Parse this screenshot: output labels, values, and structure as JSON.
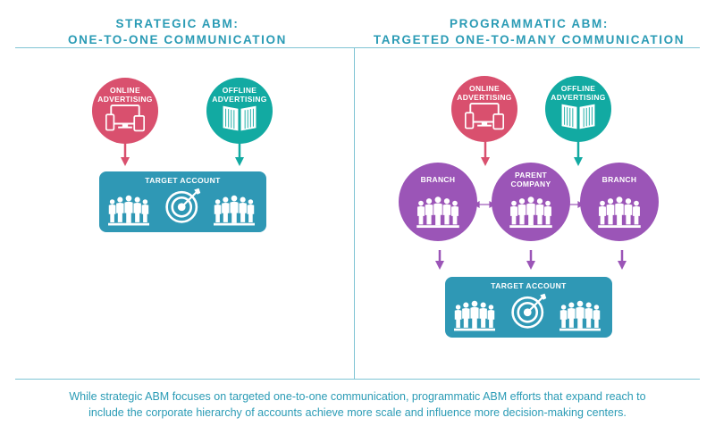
{
  "colors": {
    "pink": "#d9506e",
    "teal": "#12aaa2",
    "blue": "#2f98b5",
    "purple": "#9b55b7",
    "heading": "#2a9bb5",
    "rule": "#7fc4d4"
  },
  "left_panel": {
    "title_line1": "STRATEGIC ABM:",
    "title_line2": "ONE-TO-ONE COMMUNICATION",
    "online": {
      "line1": "ONLINE",
      "line2": "ADVERTISING",
      "icon": "devices-icon"
    },
    "offline": {
      "line1": "OFFLINE",
      "line2": "ADVERTISING",
      "icon": "magazine-icon"
    },
    "target": {
      "label": "TARGET ACCOUNT",
      "icon": "target-icon"
    }
  },
  "right_panel": {
    "title_line1": "PROGRAMMATIC ABM:",
    "title_line2": "TARGETED ONE-TO-MANY COMMUNICATION",
    "online": {
      "line1": "ONLINE",
      "line2": "ADVERTISING",
      "icon": "devices-icon"
    },
    "offline": {
      "line1": "OFFLINE",
      "line2": "ADVERTISING",
      "icon": "magazine-icon"
    },
    "branch_left": {
      "label": "BRANCH"
    },
    "parent": {
      "line1": "PARENT",
      "line2": "COMPANY"
    },
    "branch_right": {
      "label": "BRANCH"
    },
    "target": {
      "label": "TARGET ACCOUNT",
      "icon": "target-icon"
    }
  },
  "caption": {
    "line1": "While strategic ABM focuses on targeted one-to-one communication, programmatic ABM efforts that expand reach to",
    "line2": "include the corporate hierarchy of accounts achieve more scale and influence more decision-making centers."
  }
}
